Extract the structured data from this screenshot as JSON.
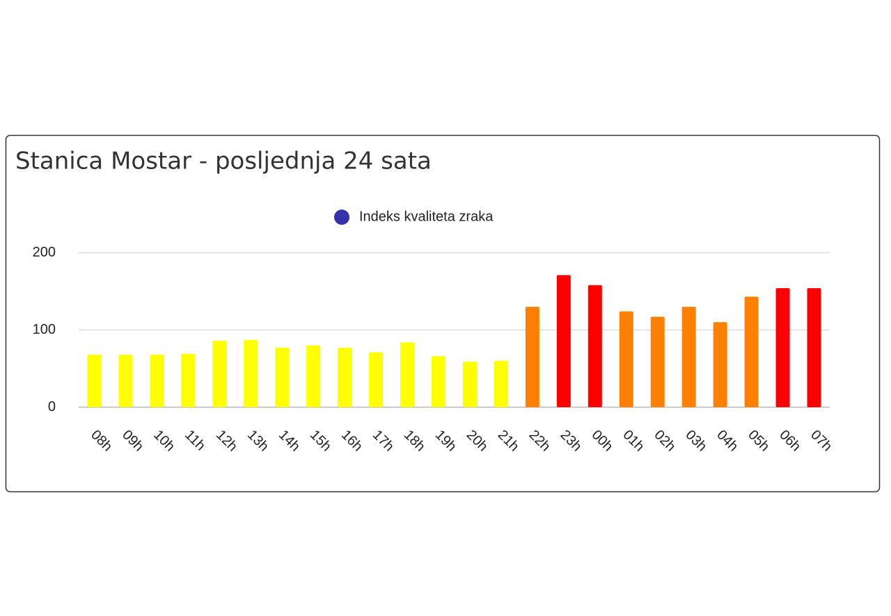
{
  "chart_data": {
    "type": "bar",
    "title": "Stanica Mostar - posljednja 24 sata",
    "categories": [
      "08h",
      "09h",
      "10h",
      "11h",
      "12h",
      "13h",
      "14h",
      "15h",
      "16h",
      "17h",
      "18h",
      "19h",
      "20h",
      "21h",
      "22h",
      "23h",
      "00h",
      "01h",
      "02h",
      "03h",
      "04h",
      "05h",
      "06h",
      "07h"
    ],
    "series": [
      {
        "name": "Indeks kvaliteta zraka",
        "color": "#3333aa",
        "values": [
          68,
          68,
          68,
          69,
          86,
          87,
          77,
          80,
          77,
          71,
          84,
          66,
          59,
          60,
          130,
          171,
          158,
          124,
          117,
          130,
          110,
          143,
          154,
          154
        ],
        "colors": [
          "#ffff00",
          "#ffff00",
          "#ffff00",
          "#ffff00",
          "#ffff00",
          "#ffff00",
          "#ffff00",
          "#ffff00",
          "#ffff00",
          "#ffff00",
          "#ffff00",
          "#ffff00",
          "#ffff00",
          "#ffff00",
          "#ff8000",
          "#ff0000",
          "#ff0000",
          "#ff8000",
          "#ff8000",
          "#ff8000",
          "#ff8000",
          "#ff8000",
          "#ff0000",
          "#ff0000"
        ]
      }
    ],
    "ylim": [
      0,
      200
    ],
    "yticks": [
      0,
      100,
      200
    ],
    "grid": true,
    "legend": "top"
  }
}
